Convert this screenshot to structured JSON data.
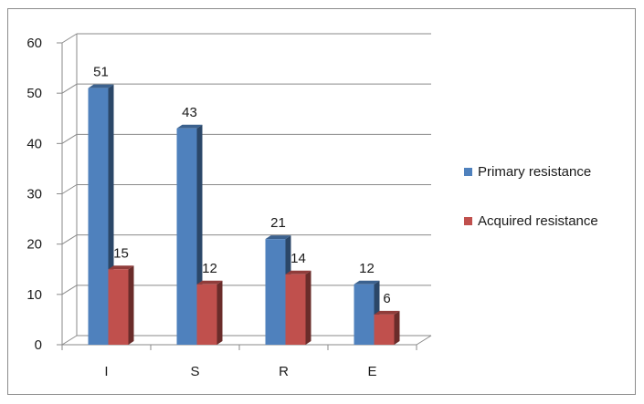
{
  "chart_data": {
    "type": "bar",
    "style": "3d-clustered-column",
    "categories": [
      "I",
      "S",
      "R",
      "E"
    ],
    "series": [
      {
        "name": "Primary resistance",
        "values": [
          51,
          43,
          21,
          12
        ],
        "color": "#4f81bd"
      },
      {
        "name": "Acquired resistance",
        "values": [
          15,
          12,
          14,
          6
        ],
        "color": "#c0504d"
      }
    ],
    "title": "",
    "xlabel": "",
    "ylabel": "",
    "ylim": [
      0,
      60
    ],
    "yticks": [
      "0",
      "10",
      "20",
      "30",
      "40",
      "50",
      "60"
    ],
    "grid": true,
    "legend_position": "right",
    "data_labels": true
  }
}
